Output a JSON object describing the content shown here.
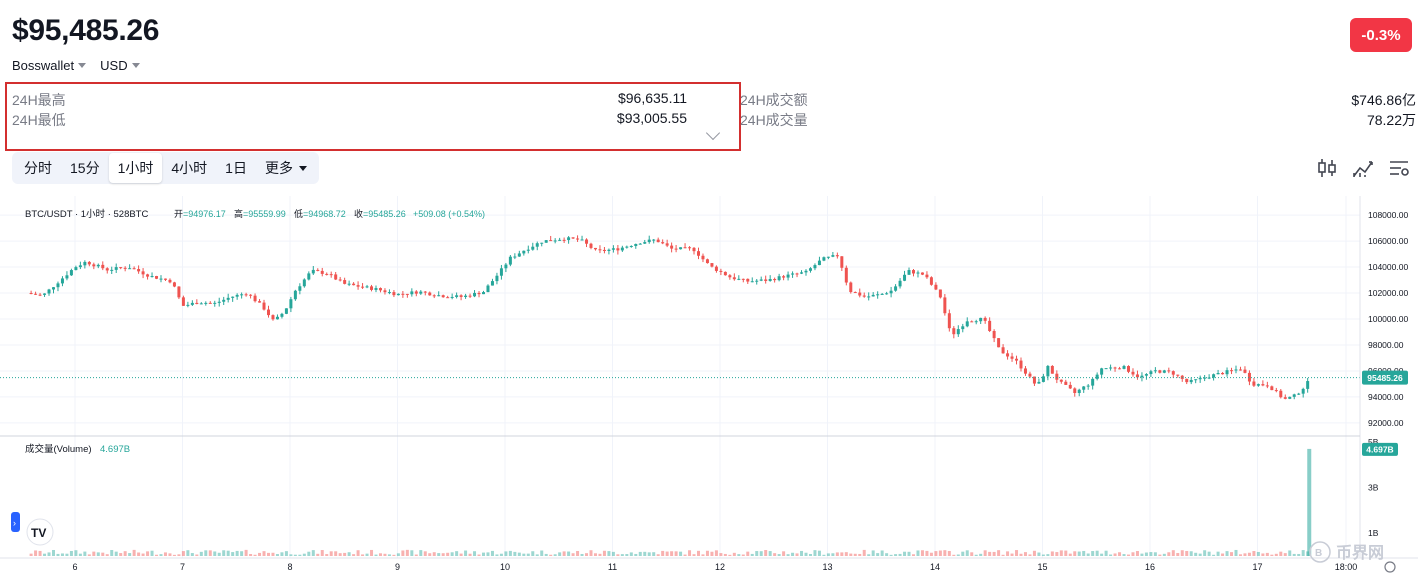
{
  "header": {
    "price": "$95,485.26",
    "change": "-0.3%",
    "exchange": "Bosswallet",
    "currency": "USD"
  },
  "stats": {
    "high_label": "24H最高",
    "high_value": "$96,635.11",
    "low_label": "24H最低",
    "low_value": "$93,005.55",
    "turnover_label": "24H成交额",
    "turnover_value": "$746.86亿",
    "volume_label": "24H成交量",
    "volume_value": "78.22万"
  },
  "tabs": [
    "分时",
    "15分",
    "1小时",
    "4小时",
    "1日",
    "更多"
  ],
  "active_tab": "1小时",
  "tools": [
    "candles-icon",
    "indicators-icon",
    "settings-icon"
  ],
  "legend": {
    "symbol": "BTC/USDT · 1小时 · 528BTC",
    "open_label": "开",
    "open": "=94976.17",
    "high_label": "高",
    "high": "=95559.99",
    "low_label": "低",
    "low": "=94968.72",
    "close_label": "收",
    "close": "=95485.26",
    "change": "+509.08 (+0.54%)"
  },
  "volume_legend": {
    "label": "成交量(Volume)",
    "value": "4.697B"
  },
  "watermark": "币界网",
  "colors": {
    "up": "#26a69a",
    "down": "#ef5350",
    "accent": "#2962ff",
    "badge": "#f23645"
  },
  "chart_data": {
    "type": "candlestick",
    "x_ticks": [
      "6",
      "7",
      "8",
      "9",
      "10",
      "11",
      "12",
      "13",
      "14",
      "15",
      "16",
      "17",
      "18:00"
    ],
    "y_ticks": [
      "108000.00",
      "106000.00",
      "104000.00",
      "102000.00",
      "100000.00",
      "98000.00",
      "96000.00",
      "94000.00",
      "92000.00"
    ],
    "y_range": [
      91300,
      108700
    ],
    "last_price": "95485.26",
    "volume_ticks": [
      "5B",
      "3B",
      "1B"
    ],
    "volume_range": [
      0,
      5
    ],
    "last_volume": "4.697B",
    "price_path": [
      [
        5.55,
        102000
      ],
      [
        5.7,
        101800
      ],
      [
        5.85,
        102900
      ],
      [
        6.0,
        104000
      ],
      [
        6.1,
        104400
      ],
      [
        6.3,
        103800
      ],
      [
        6.5,
        104000
      ],
      [
        6.7,
        103300
      ],
      [
        6.9,
        102900
      ],
      [
        7.0,
        101000
      ],
      [
        7.15,
        101300
      ],
      [
        7.3,
        101200
      ],
      [
        7.45,
        101700
      ],
      [
        7.6,
        102000
      ],
      [
        7.75,
        100900
      ],
      [
        7.85,
        99800
      ],
      [
        7.95,
        100600
      ],
      [
        8.05,
        102200
      ],
      [
        8.2,
        103700
      ],
      [
        8.35,
        103500
      ],
      [
        8.5,
        102700
      ],
      [
        8.8,
        102300
      ],
      [
        9.0,
        101900
      ],
      [
        9.2,
        102100
      ],
      [
        9.4,
        101800
      ],
      [
        9.6,
        101700
      ],
      [
        9.8,
        102100
      ],
      [
        9.95,
        103600
      ],
      [
        10.05,
        104700
      ],
      [
        10.2,
        105400
      ],
      [
        10.35,
        106000
      ],
      [
        10.55,
        106200
      ],
      [
        10.7,
        106100
      ],
      [
        10.85,
        105200
      ],
      [
        11.05,
        105400
      ],
      [
        11.25,
        105900
      ],
      [
        11.4,
        106100
      ],
      [
        11.55,
        105400
      ],
      [
        11.75,
        105400
      ],
      [
        11.9,
        104100
      ],
      [
        12.1,
        103200
      ],
      [
        12.25,
        102900
      ],
      [
        12.45,
        103000
      ],
      [
        12.6,
        103300
      ],
      [
        12.8,
        103600
      ],
      [
        12.95,
        104600
      ],
      [
        13.1,
        104900
      ],
      [
        13.2,
        102200
      ],
      [
        13.35,
        101700
      ],
      [
        13.5,
        101900
      ],
      [
        13.6,
        102200
      ],
      [
        13.75,
        103700
      ],
      [
        13.9,
        103400
      ],
      [
        14.05,
        101700
      ],
      [
        14.15,
        98700
      ],
      [
        14.3,
        99900
      ],
      [
        14.45,
        100000
      ],
      [
        14.6,
        97600
      ],
      [
        14.75,
        96800
      ],
      [
        14.85,
        95800
      ],
      [
        14.95,
        94800
      ],
      [
        15.05,
        96300
      ],
      [
        15.15,
        95200
      ],
      [
        15.3,
        94300
      ],
      [
        15.45,
        95100
      ],
      [
        15.55,
        96200
      ],
      [
        15.75,
        96300
      ],
      [
        15.9,
        95500
      ],
      [
        16.05,
        96000
      ],
      [
        16.2,
        95900
      ],
      [
        16.35,
        95100
      ],
      [
        16.55,
        95600
      ],
      [
        16.7,
        95900
      ],
      [
        16.85,
        96200
      ],
      [
        16.95,
        95000
      ],
      [
        17.1,
        94900
      ],
      [
        17.25,
        93800
      ],
      [
        17.35,
        94100
      ],
      [
        17.45,
        94900
      ],
      [
        17.5,
        95485
      ]
    ]
  }
}
